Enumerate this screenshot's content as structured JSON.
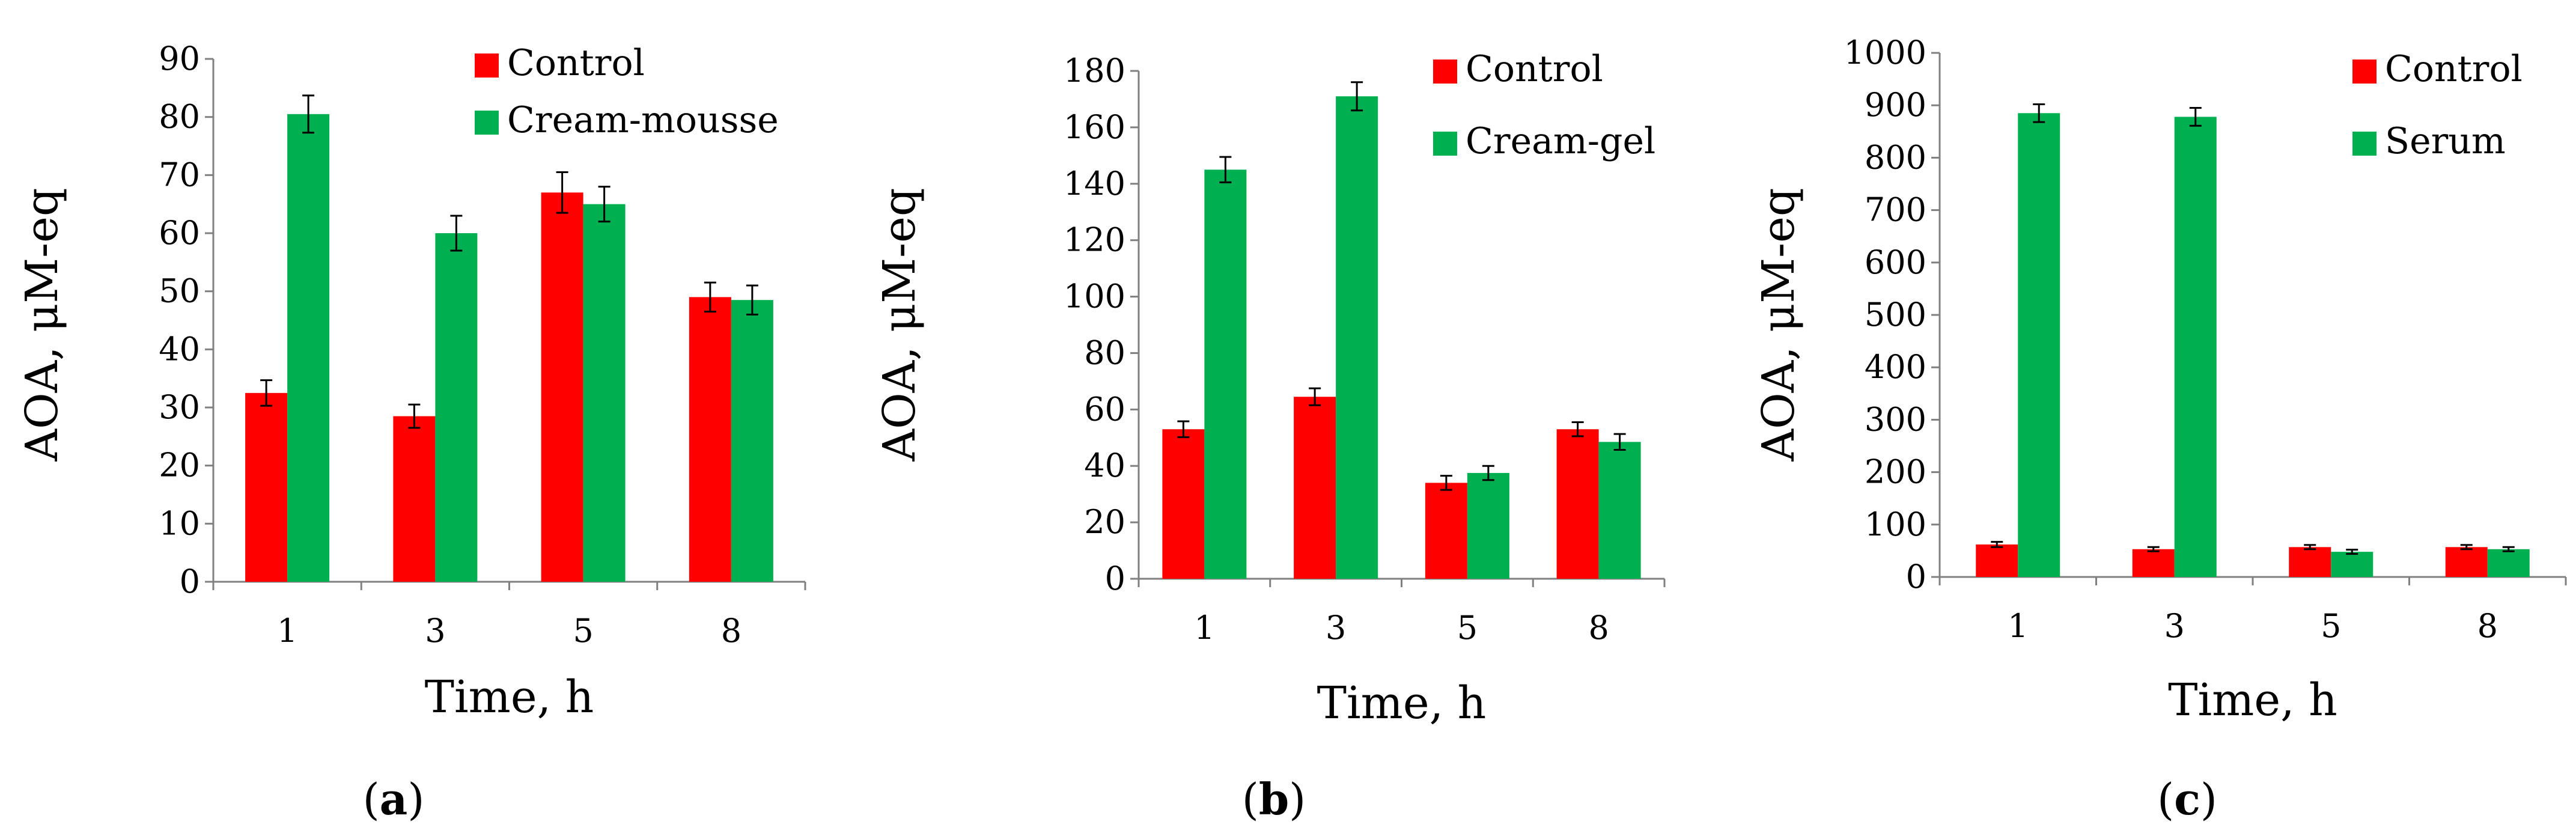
{
  "chart_data": [
    {
      "type": "bar",
      "panel_label": "a",
      "title": "",
      "xlabel": "Time, h",
      "ylabel": "AOA, μM-eq",
      "categories": [
        "1",
        "3",
        "5",
        "8"
      ],
      "ylim": [
        0,
        90
      ],
      "yticks": [
        0,
        10,
        20,
        30,
        40,
        50,
        60,
        70,
        80,
        90
      ],
      "grid": false,
      "legend_position": "top-right",
      "series": [
        {
          "name": "Control",
          "color": "#ff0000",
          "values": [
            32.5,
            28.5,
            67,
            49
          ],
          "errors": [
            2.2,
            2,
            3.5,
            2.5
          ]
        },
        {
          "name": "Cream-mousse",
          "color": "#00b050",
          "values": [
            80.5,
            60,
            65,
            48.5
          ],
          "errors": [
            3.2,
            3,
            3,
            2.5
          ]
        }
      ]
    },
    {
      "type": "bar",
      "panel_label": "b",
      "title": "",
      "xlabel": "Time, h",
      "ylabel": "AOA, μM-eq",
      "categories": [
        "1",
        "3",
        "5",
        "8"
      ],
      "ylim": [
        0,
        180
      ],
      "yticks": [
        0,
        20,
        40,
        60,
        80,
        100,
        120,
        140,
        160,
        180
      ],
      "grid": false,
      "legend_position": "top-right",
      "series": [
        {
          "name": "Control",
          "color": "#ff0000",
          "values": [
            53,
            64.5,
            34,
            53
          ],
          "errors": [
            2.8,
            3,
            2.5,
            2.5
          ]
        },
        {
          "name": "Cream-gel",
          "color": "#00b050",
          "values": [
            145,
            171,
            37.5,
            48.5
          ],
          "errors": [
            4.5,
            5,
            2.5,
            2.8
          ]
        }
      ]
    },
    {
      "type": "bar",
      "panel_label": "c",
      "title": "",
      "xlabel": "Time, h",
      "ylabel": "AOA, μM-eq",
      "categories": [
        "1",
        "3",
        "5",
        "8"
      ],
      "ylim": [
        0,
        1000
      ],
      "yticks": [
        0,
        100,
        200,
        300,
        400,
        500,
        600,
        700,
        800,
        900,
        1000
      ],
      "grid": false,
      "legend_position": "top-right",
      "series": [
        {
          "name": "Control",
          "color": "#ff0000",
          "values": [
            62,
            53,
            57,
            57
          ],
          "errors": [
            5,
            4,
            4,
            4
          ]
        },
        {
          "name": "Serum",
          "color": "#00b050",
          "values": [
            885,
            878,
            48,
            53
          ],
          "errors": [
            17,
            17,
            4,
            4
          ]
        }
      ]
    }
  ]
}
